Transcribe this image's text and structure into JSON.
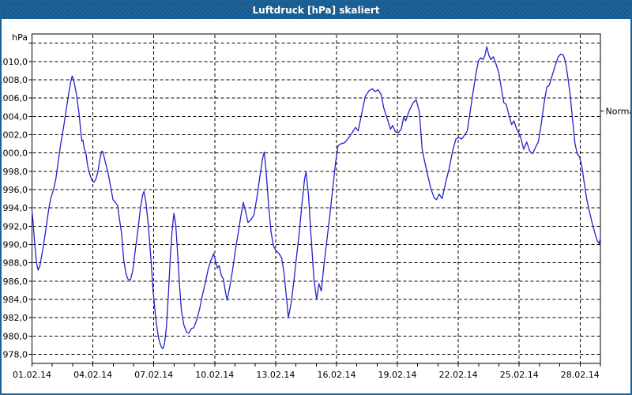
{
  "window": {
    "title": "Luftdruck [hPa] skaliert"
  },
  "colors": {
    "titlebar": "#1c6296",
    "titlebar_text": "#ffffff",
    "window_border": "#1c6296",
    "plot_border": "#000000",
    "grid": "#000000",
    "label": "#000000",
    "line": "#2222CC",
    "background": "#ffffff"
  },
  "chart_data": {
    "type": "line",
    "title": "Luftdruck [hPa] skaliert",
    "ylabel": "hPa",
    "xlabel": "",
    "grid": "on",
    "legend": "none",
    "ylim": [
      977,
      1013
    ],
    "y_axis": {
      "min": 977,
      "max": 1013,
      "grid_min": 978,
      "grid_max": 1012,
      "grid_step": 2,
      "label_min": 978,
      "label_max": 1010,
      "decimal_separator": ","
    },
    "x_axis": {
      "days": 28,
      "minor_tick_every_days": 1,
      "ticks": [
        {
          "day": 0,
          "label": "01.02.14"
        },
        {
          "day": 3,
          "label": "04.02.14"
        },
        {
          "day": 6,
          "label": "07.02.14"
        },
        {
          "day": 9,
          "label": "10.02.14"
        },
        {
          "day": 12,
          "label": "13.02.14"
        },
        {
          "day": 15,
          "label": "16.02.14"
        },
        {
          "day": 18,
          "label": "19.02.14"
        },
        {
          "day": 21,
          "label": "22.02.14"
        },
        {
          "day": 24,
          "label": "25.02.14"
        },
        {
          "day": 27,
          "label": "28.02.14"
        }
      ]
    },
    "annotations": [
      {
        "label": "Normal",
        "value": 1004.6,
        "side": "right"
      }
    ],
    "series": [
      {
        "name": "Luftdruck",
        "color": "#2222CC",
        "points": [
          [
            0.0,
            993.6
          ],
          [
            0.06,
            992.3
          ],
          [
            0.13,
            990.2
          ],
          [
            0.22,
            988.0
          ],
          [
            0.3,
            987.2
          ],
          [
            0.38,
            987.6
          ],
          [
            0.48,
            988.8
          ],
          [
            0.58,
            990.1
          ],
          [
            0.7,
            991.9
          ],
          [
            0.82,
            993.8
          ],
          [
            0.93,
            995.1
          ],
          [
            1.05,
            995.9
          ],
          [
            1.17,
            997.1
          ],
          [
            1.29,
            999.0
          ],
          [
            1.41,
            1000.9
          ],
          [
            1.54,
            1002.6
          ],
          [
            1.67,
            1004.5
          ],
          [
            1.8,
            1006.4
          ],
          [
            1.91,
            1007.8
          ],
          [
            1.98,
            1008.4
          ],
          [
            2.06,
            1007.9
          ],
          [
            2.19,
            1006.4
          ],
          [
            2.31,
            1004.4
          ],
          [
            2.4,
            1002.4
          ],
          [
            2.46,
            1001.3
          ],
          [
            2.51,
            1001.4
          ],
          [
            2.58,
            1000.4
          ],
          [
            2.65,
            1000.1
          ],
          [
            2.74,
            998.6
          ],
          [
            2.84,
            997.7
          ],
          [
            2.95,
            997.0
          ],
          [
            3.05,
            996.8
          ],
          [
            3.14,
            997.1
          ],
          [
            3.24,
            997.9
          ],
          [
            3.35,
            999.4
          ],
          [
            3.44,
            1000.2
          ],
          [
            3.5,
            1000.1
          ],
          [
            3.6,
            999.1
          ],
          [
            3.74,
            997.9
          ],
          [
            3.87,
            996.4
          ],
          [
            3.99,
            994.9
          ],
          [
            4.1,
            994.6
          ],
          [
            4.21,
            994.3
          ],
          [
            4.32,
            992.6
          ],
          [
            4.41,
            991.3
          ],
          [
            4.52,
            988.3
          ],
          [
            4.63,
            986.8
          ],
          [
            4.73,
            986.2
          ],
          [
            4.85,
            986.1
          ],
          [
            4.96,
            987.1
          ],
          [
            5.08,
            989.2
          ],
          [
            5.22,
            991.6
          ],
          [
            5.35,
            994.1
          ],
          [
            5.46,
            995.5
          ],
          [
            5.52,
            995.8
          ],
          [
            5.61,
            994.6
          ],
          [
            5.74,
            991.9
          ],
          [
            5.86,
            988.4
          ],
          [
            5.96,
            985.0
          ],
          [
            6.07,
            982.5
          ],
          [
            6.17,
            980.7
          ],
          [
            6.26,
            979.5
          ],
          [
            6.37,
            978.8
          ],
          [
            6.45,
            978.6
          ],
          [
            6.53,
            979.2
          ],
          [
            6.62,
            980.9
          ],
          [
            6.72,
            984.6
          ],
          [
            6.81,
            988.5
          ],
          [
            6.9,
            991.4
          ],
          [
            6.99,
            993.4
          ],
          [
            7.08,
            992.2
          ],
          [
            7.17,
            989.2
          ],
          [
            7.26,
            985.7
          ],
          [
            7.36,
            982.8
          ],
          [
            7.48,
            981.2
          ],
          [
            7.62,
            980.4
          ],
          [
            7.72,
            980.3
          ],
          [
            7.85,
            980.8
          ],
          [
            7.97,
            980.9
          ],
          [
            8.12,
            981.8
          ],
          [
            8.26,
            983.0
          ],
          [
            8.4,
            984.5
          ],
          [
            8.54,
            985.8
          ],
          [
            8.67,
            987.2
          ],
          [
            8.8,
            988.2
          ],
          [
            8.95,
            989.0
          ],
          [
            9.06,
            988.0
          ],
          [
            9.13,
            987.4
          ],
          [
            9.22,
            987.7
          ],
          [
            9.33,
            986.6
          ],
          [
            9.43,
            986.2
          ],
          [
            9.53,
            984.8
          ],
          [
            9.61,
            983.9
          ],
          [
            9.73,
            985.2
          ],
          [
            9.88,
            987.2
          ],
          [
            10.02,
            989.4
          ],
          [
            10.16,
            991.3
          ],
          [
            10.29,
            993.1
          ],
          [
            10.41,
            994.6
          ],
          [
            10.53,
            993.5
          ],
          [
            10.64,
            992.4
          ],
          [
            10.78,
            992.7
          ],
          [
            10.93,
            993.2
          ],
          [
            11.09,
            995.3
          ],
          [
            11.23,
            997.5
          ],
          [
            11.36,
            999.4
          ],
          [
            11.44,
            1000.1
          ],
          [
            11.54,
            997.8
          ],
          [
            11.66,
            994.2
          ],
          [
            11.78,
            991.3
          ],
          [
            11.9,
            989.8
          ],
          [
            12.03,
            989.3
          ],
          [
            12.17,
            989.0
          ],
          [
            12.3,
            988.5
          ],
          [
            12.42,
            986.8
          ],
          [
            12.53,
            984.3
          ],
          [
            12.63,
            982.0
          ],
          [
            12.76,
            983.5
          ],
          [
            12.9,
            986.0
          ],
          [
            13.03,
            988.6
          ],
          [
            13.16,
            991.2
          ],
          [
            13.3,
            994.5
          ],
          [
            13.43,
            997.2
          ],
          [
            13.5,
            997.9
          ],
          [
            13.62,
            995.4
          ],
          [
            13.75,
            990.8
          ],
          [
            13.89,
            986.2
          ],
          [
            14.02,
            984.0
          ],
          [
            14.14,
            985.7
          ],
          [
            14.25,
            984.9
          ],
          [
            14.38,
            987.7
          ],
          [
            14.52,
            990.3
          ],
          [
            14.67,
            993.2
          ],
          [
            14.82,
            996.2
          ],
          [
            14.95,
            998.9
          ],
          [
            15.08,
            1000.8
          ],
          [
            15.22,
            1001.0
          ],
          [
            15.4,
            1001.1
          ],
          [
            15.58,
            1001.6
          ],
          [
            15.77,
            1002.2
          ],
          [
            15.94,
            1002.8
          ],
          [
            16.07,
            1002.4
          ],
          [
            16.24,
            1004.3
          ],
          [
            16.42,
            1006.2
          ],
          [
            16.6,
            1006.8
          ],
          [
            16.77,
            1007.0
          ],
          [
            16.9,
            1006.7
          ],
          [
            17.05,
            1006.9
          ],
          [
            17.2,
            1006.4
          ],
          [
            17.33,
            1004.9
          ],
          [
            17.49,
            1003.8
          ],
          [
            17.66,
            1002.6
          ],
          [
            17.77,
            1003.0
          ],
          [
            17.9,
            1002.3
          ],
          [
            18.05,
            1002.2
          ],
          [
            18.19,
            1002.6
          ],
          [
            18.31,
            1003.9
          ],
          [
            18.41,
            1003.5
          ],
          [
            18.58,
            1004.6
          ],
          [
            18.78,
            1005.5
          ],
          [
            18.93,
            1005.8
          ],
          [
            19.08,
            1004.5
          ],
          [
            19.22,
            1000.4
          ],
          [
            19.35,
            999.0
          ],
          [
            19.5,
            997.5
          ],
          [
            19.65,
            996.1
          ],
          [
            19.81,
            995.1
          ],
          [
            19.93,
            994.9
          ],
          [
            20.06,
            995.5
          ],
          [
            20.2,
            995.0
          ],
          [
            20.38,
            996.8
          ],
          [
            20.55,
            998.3
          ],
          [
            20.72,
            1000.2
          ],
          [
            20.88,
            1001.5
          ],
          [
            21.03,
            1001.7
          ],
          [
            21.16,
            1001.5
          ],
          [
            21.29,
            1001.9
          ],
          [
            21.44,
            1002.4
          ],
          [
            21.58,
            1004.4
          ],
          [
            21.73,
            1006.7
          ],
          [
            21.87,
            1008.7
          ],
          [
            22.0,
            1010.1
          ],
          [
            22.1,
            1010.4
          ],
          [
            22.22,
            1010.2
          ],
          [
            22.32,
            1010.7
          ],
          [
            22.4,
            1011.6
          ],
          [
            22.5,
            1010.7
          ],
          [
            22.6,
            1010.2
          ],
          [
            22.73,
            1010.5
          ],
          [
            22.86,
            1009.7
          ],
          [
            23.0,
            1008.7
          ],
          [
            23.13,
            1006.9
          ],
          [
            23.24,
            1005.5
          ],
          [
            23.36,
            1005.3
          ],
          [
            23.52,
            1003.9
          ],
          [
            23.63,
            1003.1
          ],
          [
            23.74,
            1003.5
          ],
          [
            23.88,
            1002.6
          ],
          [
            24.05,
            1001.9
          ],
          [
            24.22,
            1000.4
          ],
          [
            24.37,
            1001.2
          ],
          [
            24.52,
            1000.2
          ],
          [
            24.66,
            999.9
          ],
          [
            24.8,
            1000.6
          ],
          [
            24.94,
            1001.2
          ],
          [
            25.08,
            1003.1
          ],
          [
            25.23,
            1005.5
          ],
          [
            25.36,
            1007.2
          ],
          [
            25.48,
            1007.4
          ],
          [
            25.63,
            1008.5
          ],
          [
            25.78,
            1009.6
          ],
          [
            25.92,
            1010.5
          ],
          [
            26.05,
            1010.8
          ],
          [
            26.17,
            1010.7
          ],
          [
            26.28,
            1010.0
          ],
          [
            26.4,
            1008.2
          ],
          [
            26.51,
            1006.4
          ],
          [
            26.63,
            1003.6
          ],
          [
            26.75,
            1001.0
          ],
          [
            26.86,
            999.9
          ],
          [
            26.97,
            999.6
          ],
          [
            27.08,
            998.6
          ],
          [
            27.2,
            996.8
          ],
          [
            27.33,
            994.9
          ],
          [
            27.47,
            993.5
          ],
          [
            27.6,
            992.3
          ],
          [
            27.73,
            991.2
          ],
          [
            27.85,
            990.4
          ],
          [
            27.94,
            990.1
          ],
          [
            28.0,
            990.7
          ]
        ]
      }
    ]
  }
}
